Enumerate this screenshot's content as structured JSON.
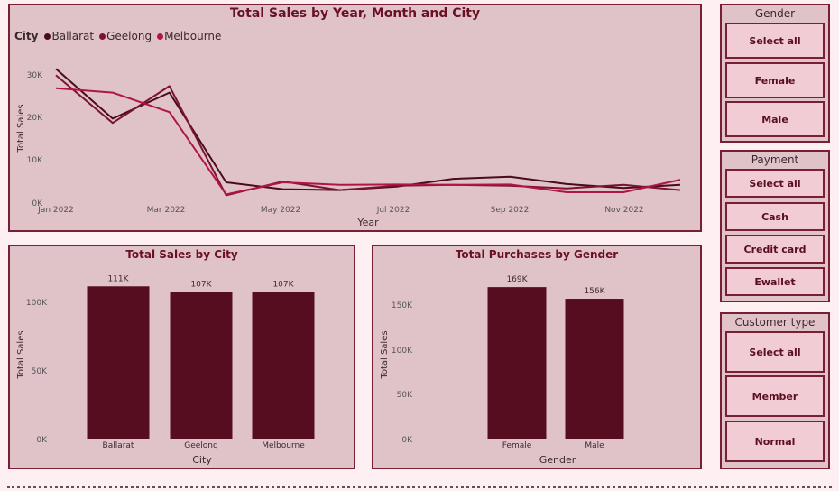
{
  "line_chart": {
    "title": "Total Sales by Year, Month and City",
    "legend_title": "City",
    "legend": [
      {
        "name": "Ballarat",
        "color": "#4a0b1c"
      },
      {
        "name": "Geelong",
        "color": "#7a1233"
      },
      {
        "name": "Melbourne",
        "color": "#b0163f"
      }
    ],
    "ylabel": "Total Sales",
    "xlabel": "Year",
    "y_ticks": [
      "0K",
      "10K",
      "20K",
      "30K"
    ],
    "x_ticks": [
      "Jan 2022",
      "Mar 2022",
      "May 2022",
      "Jul 2022",
      "Sep 2022",
      "Nov 2022"
    ]
  },
  "city_chart": {
    "title": "Total Sales by City",
    "ylabel": "Total Sales",
    "xlabel": "City",
    "y_ticks": [
      "0K",
      "50K",
      "100K"
    ],
    "categories": [
      "Ballarat",
      "Geelong",
      "Melbourne"
    ],
    "value_labels": [
      "111K",
      "107K",
      "107K"
    ],
    "bar_color": "#560d20"
  },
  "gender_chart": {
    "title": "Total Purchases by Gender",
    "ylabel": "Total Sales",
    "xlabel": "Gender",
    "y_ticks": [
      "0K",
      "50K",
      "100K",
      "150K"
    ],
    "categories": [
      "Female",
      "Male"
    ],
    "value_labels": [
      "169K",
      "156K"
    ],
    "bar_color": "#560d20"
  },
  "slicers": {
    "gender": {
      "title": "Gender",
      "options": [
        "Select all",
        "Female",
        "Male"
      ]
    },
    "payment": {
      "title": "Payment",
      "options": [
        "Select all",
        "Cash",
        "Credit card",
        "Ewallet"
      ]
    },
    "customer_type": {
      "title": "Customer type",
      "options": [
        "Select all",
        "Member",
        "Normal"
      ]
    }
  },
  "chart_data": [
    {
      "type": "line",
      "title": "Total Sales by Year, Month and City",
      "xlabel": "Year",
      "ylabel": "Total Sales",
      "x": [
        "Jan 2022",
        "Feb 2022",
        "Mar 2022",
        "Apr 2022",
        "May 2022",
        "Jun 2022",
        "Jul 2022",
        "Aug 2022",
        "Sep 2022",
        "Oct 2022",
        "Nov 2022",
        "Dec 2022"
      ],
      "ylim": [
        0,
        33000
      ],
      "series": [
        {
          "name": "Ballarat",
          "values": [
            31000,
            19500,
            25500,
            4800,
            3200,
            3000,
            3800,
            5600,
            6100,
            4400,
            3500,
            4200
          ]
        },
        {
          "name": "Geelong",
          "values": [
            29500,
            18500,
            27000,
            1800,
            5000,
            3000,
            4000,
            4200,
            4000,
            3400,
            4200,
            3000
          ]
        },
        {
          "name": "Melbourne",
          "values": [
            26500,
            25500,
            21000,
            2000,
            4800,
            4200,
            4300,
            4200,
            4300,
            2500,
            2500,
            5400
          ]
        }
      ]
    },
    {
      "type": "bar",
      "title": "Total Sales by City",
      "xlabel": "City",
      "ylabel": "Total Sales",
      "categories": [
        "Ballarat",
        "Geelong",
        "Melbourne"
      ],
      "values": [
        111000,
        107000,
        107000
      ],
      "ylim": [
        0,
        125000
      ]
    },
    {
      "type": "bar",
      "title": "Total Purchases by Gender",
      "xlabel": "Gender",
      "ylabel": "Total Sales",
      "categories": [
        "Female",
        "Male"
      ],
      "values": [
        169000,
        156000
      ],
      "ylim": [
        0,
        175000
      ]
    }
  ]
}
